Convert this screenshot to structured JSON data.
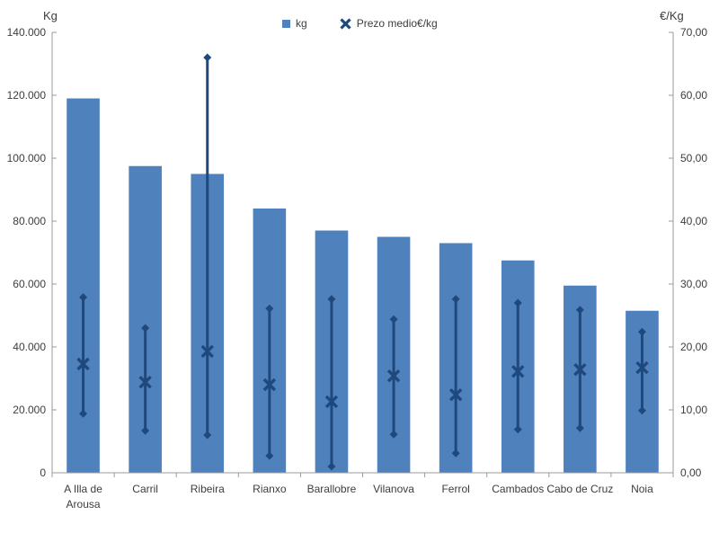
{
  "chart_data": {
    "type": "bar",
    "subtype": "bar-with-range-mean-overlay",
    "title": "",
    "categories": [
      "A Illa de Arousa",
      "Carril",
      "Ribeira",
      "Rianxo",
      "Barallobre",
      "Vilanova",
      "Ferrol",
      "Cambados",
      "Cabo de Cruz",
      "Noia"
    ],
    "series": [
      {
        "name": "kg",
        "type": "bar",
        "axis": "left",
        "color": "#4f81bd",
        "values": [
          119000,
          97500,
          95000,
          84000,
          77000,
          75000,
          73000,
          67500,
          59500,
          51500
        ]
      },
      {
        "name": "Prezo medio€/kg",
        "type": "range-mean",
        "axis": "right",
        "color": "#1f497d",
        "mean": [
          17.3,
          14.4,
          19.3,
          14.0,
          11.3,
          15.4,
          12.4,
          16.1,
          16.4,
          16.7
        ],
        "high": [
          27.9,
          23.0,
          66.0,
          26.1,
          27.6,
          24.4,
          27.6,
          27.0,
          25.9,
          22.4
        ],
        "low": [
          9.4,
          6.7,
          6.0,
          2.7,
          1.0,
          6.1,
          3.1,
          6.9,
          7.1,
          9.9
        ]
      }
    ],
    "left_axis": {
      "title": "Kg",
      "min": 0,
      "max": 140000,
      "tick_values": [
        0,
        20000,
        40000,
        60000,
        80000,
        100000,
        120000,
        140000
      ],
      "tick_labels": [
        "0",
        "20.000",
        "40.000",
        "60.000",
        "80.000",
        "100.000",
        "120.000",
        "140.000"
      ]
    },
    "right_axis": {
      "title": "€/Kg",
      "min": 0,
      "max": 70,
      "tick_values": [
        0,
        10,
        20,
        30,
        40,
        50,
        60,
        70
      ],
      "tick_labels": [
        "0,00",
        "10,00",
        "20,00",
        "30,00",
        "40,00",
        "50,00",
        "60,00",
        "70,00"
      ]
    },
    "legend": {
      "position": "top",
      "entries": [
        "kg",
        "Prezo medio€/kg"
      ]
    },
    "grid": false,
    "colors": {
      "bar": "#4f81bd",
      "marker": "#1f497d",
      "axis_line": "#9b9b9b",
      "text": "#3d3d3d",
      "background": "#ffffff"
    }
  }
}
